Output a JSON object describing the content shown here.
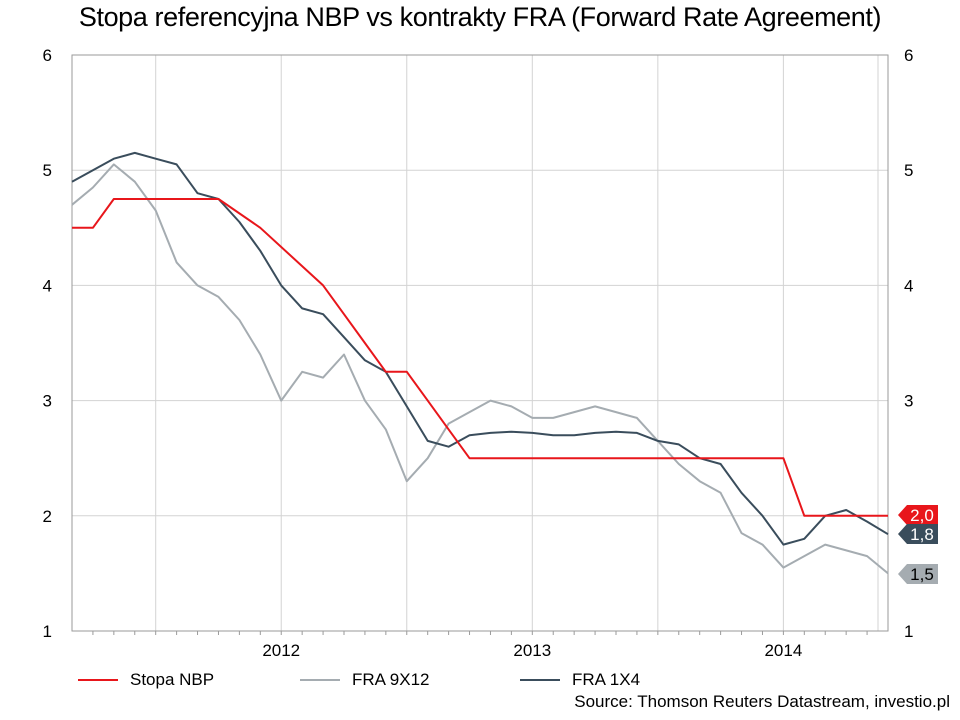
{
  "chart_data": {
    "type": "line",
    "title": "Stopa referencyjna NBP vs kontrakty FRA (Forward Rate Agreement)",
    "source": "Source: Thomson Reuters Datastream, investio.pl",
    "y_ticks": [
      "1",
      "2",
      "3",
      "4",
      "5",
      "6"
    ],
    "ylim": [
      1,
      6
    ],
    "x_labels": [
      "2012",
      "2013",
      "2014"
    ],
    "xlim": [
      "2011-09",
      "2014-12"
    ],
    "grid": true,
    "legend_position": "bottom",
    "end_badges": [
      {
        "series": "Stopa NBP",
        "label": "2,0",
        "value": 2.0
      },
      {
        "series": "FRA 1X4",
        "label": "1,8",
        "value": 1.84
      },
      {
        "series": "FRA 9X12",
        "label": "1,5",
        "value": 1.5
      }
    ],
    "series": [
      {
        "name": "Stopa NBP",
        "color": "#e8161b",
        "points": [
          [
            "2011-09",
            4.5
          ],
          [
            "2011-10",
            4.5
          ],
          [
            "2011-11",
            4.75
          ],
          [
            "2012-04",
            4.75
          ],
          [
            "2012-06",
            4.5
          ],
          [
            "2012-09",
            4.0
          ],
          [
            "2012-10",
            3.75
          ],
          [
            "2012-11",
            3.5
          ],
          [
            "2012-12",
            3.25
          ],
          [
            "2013-01",
            3.25
          ],
          [
            "2013-02",
            3.0
          ],
          [
            "2013-03",
            2.75
          ],
          [
            "2013-04",
            2.5
          ],
          [
            "2014-06",
            2.5
          ],
          [
            "2014-07",
            2.5
          ],
          [
            "2014-08",
            2.0
          ],
          [
            "2014-12",
            2.0
          ]
        ]
      },
      {
        "name": "FRA 9X12",
        "color": "#a5acb1",
        "points": [
          [
            "2011-09",
            4.7
          ],
          [
            "2011-10",
            4.85
          ],
          [
            "2011-11",
            5.05
          ],
          [
            "2011-12",
            4.9
          ],
          [
            "2012-01",
            4.65
          ],
          [
            "2012-02",
            4.2
          ],
          [
            "2012-03",
            4.0
          ],
          [
            "2012-04",
            3.9
          ],
          [
            "2012-05",
            3.7
          ],
          [
            "2012-06",
            3.4
          ],
          [
            "2012-07",
            3.0
          ],
          [
            "2012-08",
            3.25
          ],
          [
            "2012-09",
            3.2
          ],
          [
            "2012-10",
            3.4
          ],
          [
            "2012-11",
            3.0
          ],
          [
            "2012-12",
            2.75
          ],
          [
            "2013-01",
            2.3
          ],
          [
            "2013-02",
            2.5
          ],
          [
            "2013-03",
            2.8
          ],
          [
            "2013-04",
            2.9
          ],
          [
            "2013-05",
            3.0
          ],
          [
            "2013-06",
            2.95
          ],
          [
            "2013-07",
            2.85
          ],
          [
            "2013-08",
            2.85
          ],
          [
            "2013-09",
            2.9
          ],
          [
            "2013-10",
            2.95
          ],
          [
            "2013-11",
            2.9
          ],
          [
            "2013-12",
            2.85
          ],
          [
            "2014-01",
            2.65
          ],
          [
            "2014-02",
            2.45
          ],
          [
            "2014-03",
            2.3
          ],
          [
            "2014-04",
            2.2
          ],
          [
            "2014-05",
            1.85
          ],
          [
            "2014-06",
            1.75
          ],
          [
            "2014-07",
            1.55
          ],
          [
            "2014-08",
            1.65
          ],
          [
            "2014-09",
            1.75
          ],
          [
            "2014-10",
            1.7
          ],
          [
            "2014-11",
            1.65
          ],
          [
            "2014-12",
            1.5
          ]
        ]
      },
      {
        "name": "FRA 1X4",
        "color": "#3a4d5c",
        "points": [
          [
            "2011-09",
            4.9
          ],
          [
            "2011-10",
            5.0
          ],
          [
            "2011-11",
            5.1
          ],
          [
            "2011-12",
            5.15
          ],
          [
            "2012-01",
            5.1
          ],
          [
            "2012-02",
            5.05
          ],
          [
            "2012-03",
            4.8
          ],
          [
            "2012-04",
            4.75
          ],
          [
            "2012-05",
            4.55
          ],
          [
            "2012-06",
            4.3
          ],
          [
            "2012-07",
            4.0
          ],
          [
            "2012-08",
            3.8
          ],
          [
            "2012-09",
            3.75
          ],
          [
            "2012-10",
            3.55
          ],
          [
            "2012-11",
            3.35
          ],
          [
            "2012-12",
            3.25
          ],
          [
            "2013-01",
            2.95
          ],
          [
            "2013-02",
            2.65
          ],
          [
            "2013-03",
            2.6
          ],
          [
            "2013-04",
            2.7
          ],
          [
            "2013-05",
            2.72
          ],
          [
            "2013-06",
            2.73
          ],
          [
            "2013-07",
            2.72
          ],
          [
            "2013-08",
            2.7
          ],
          [
            "2013-09",
            2.7
          ],
          [
            "2013-10",
            2.72
          ],
          [
            "2013-11",
            2.73
          ],
          [
            "2013-12",
            2.72
          ],
          [
            "2014-01",
            2.65
          ],
          [
            "2014-02",
            2.62
          ],
          [
            "2014-03",
            2.5
          ],
          [
            "2014-04",
            2.45
          ],
          [
            "2014-05",
            2.2
          ],
          [
            "2014-06",
            2.0
          ],
          [
            "2014-07",
            1.75
          ],
          [
            "2014-08",
            1.8
          ],
          [
            "2014-09",
            2.0
          ],
          [
            "2014-10",
            2.05
          ],
          [
            "2014-11",
            1.95
          ],
          [
            "2014-12",
            1.84
          ]
        ]
      }
    ]
  }
}
